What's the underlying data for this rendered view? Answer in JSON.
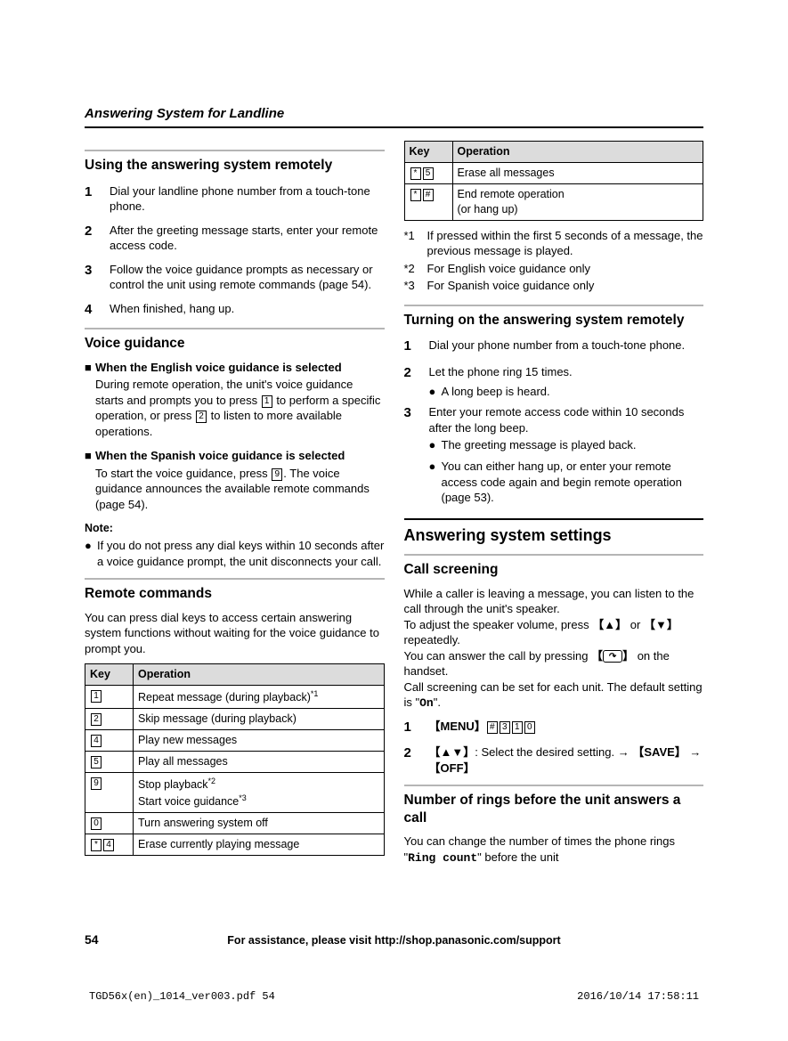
{
  "header": {
    "section_title": "Answering System for Landline"
  },
  "left": {
    "s1": {
      "title": "Using the answering system remotely",
      "steps": [
        "Dial your landline phone number from a touch-tone phone.",
        "After the greeting message starts, enter your remote access code.",
        "Follow the voice guidance prompts as necessary or control the unit using remote commands (page 54).",
        "When finished, hang up."
      ]
    },
    "s2": {
      "title": "Voice guidance",
      "eng_h": "When the English voice guidance is selected",
      "eng_p1": "During remote operation, the unit's voice guidance starts and prompts you to press ",
      "eng_p2": " to perform a specific operation, or press ",
      "eng_p3": " to listen to more available operations.",
      "spa_h": "When the Spanish voice guidance is selected",
      "spa_p1": "To start the voice guidance, press ",
      "spa_p2": ". The voice guidance announces the available remote commands (page 54).",
      "note_h": "Note:",
      "note_b": "If you do not press any dial keys within 10 seconds after a voice guidance prompt, the unit disconnects your call."
    },
    "s3": {
      "title": "Remote commands",
      "intro": "You can press dial keys to access certain answering system functions without waiting for the voice guidance to prompt you.",
      "th_key": "Key",
      "th_op": "Operation",
      "rows": [
        {
          "k": [
            "1"
          ],
          "op_a": "Repeat message (during playback)",
          "sup": "*1"
        },
        {
          "k": [
            "2"
          ],
          "op_a": "Skip message (during playback)"
        },
        {
          "k": [
            "4"
          ],
          "op_a": "Play new messages"
        },
        {
          "k": [
            "5"
          ],
          "op_a": "Play all messages"
        },
        {
          "k": [
            "9"
          ],
          "op_a": "Stop playback",
          "sup": "*2",
          "op_b": "Start voice guidance",
          "sup_b": "*3"
        },
        {
          "k": [
            "0"
          ],
          "op_a": "Turn answering system off"
        },
        {
          "k": [
            "*",
            "4"
          ],
          "op_a": "Erase currently playing message"
        }
      ]
    }
  },
  "right": {
    "table2": {
      "th_key": "Key",
      "th_op": "Operation",
      "rows": [
        {
          "k": [
            "*",
            "5"
          ],
          "op_a": "Erase all messages"
        },
        {
          "k": [
            "*",
            "#"
          ],
          "op_a": "End remote operation",
          "op_b": "(or hang up)"
        }
      ]
    },
    "footnotes": [
      {
        "n": "*1",
        "t": "If pressed within the first 5 seconds of a message, the previous message is played."
      },
      {
        "n": "*2",
        "t": "For English voice guidance only"
      },
      {
        "n": "*3",
        "t": "For Spanish voice guidance only"
      }
    ],
    "s4": {
      "title": "Turning on the answering system remotely",
      "step1": "Dial your phone number from a touch-tone phone.",
      "step2": "Let the phone ring 15 times.",
      "step2b": "A long beep is heard.",
      "step3": "Enter your remote access code within 10 seconds after the long beep.",
      "step3b1": "The greeting message is played back.",
      "step3b2": "You can either hang up, or enter your remote access code again and begin remote operation (page 53)."
    },
    "s5": {
      "title": "Answering system settings",
      "cs_title": "Call screening",
      "cs_p1": "While a caller is leaving a message, you can listen to the call through the unit's speaker.",
      "cs_p2a": "To adjust the speaker volume, press ",
      "cs_p2b": " or ",
      "cs_p2c": " repeatedly.",
      "cs_p3a": "You can answer the call by pressing ",
      "cs_p3b": " on the handset.",
      "cs_p4a": "Call screening can be set for each unit. The default setting is \"",
      "cs_on": "On",
      "cs_p4b": "\".",
      "menu_label": "MENU",
      "step2a": ": Select the desired setting. ",
      "save_label": "SAVE",
      "off_label": "OFF",
      "nr_title": "Number of rings before the unit answers a call",
      "nr_p1a": "You can change the number of times the phone rings \"",
      "nr_ring": "Ring count",
      "nr_p1b": "\" before the unit"
    }
  },
  "footer": {
    "page": "54",
    "assist": "For assistance, please visit http://shop.panasonic.com/support",
    "print_left": "TGD56x(en)_1014_ver003.pdf   54",
    "print_right": "2016/10/14   17:58:11"
  },
  "keys": {
    "k1": "1",
    "k2": "2",
    "k4": "4",
    "k5": "5",
    "k9": "9",
    "k0": "0",
    "star": "*",
    "hash": "#",
    "k3": "3",
    "up": "▲",
    "down": "▼",
    "updn": "▲▼",
    "talk": "↷"
  }
}
